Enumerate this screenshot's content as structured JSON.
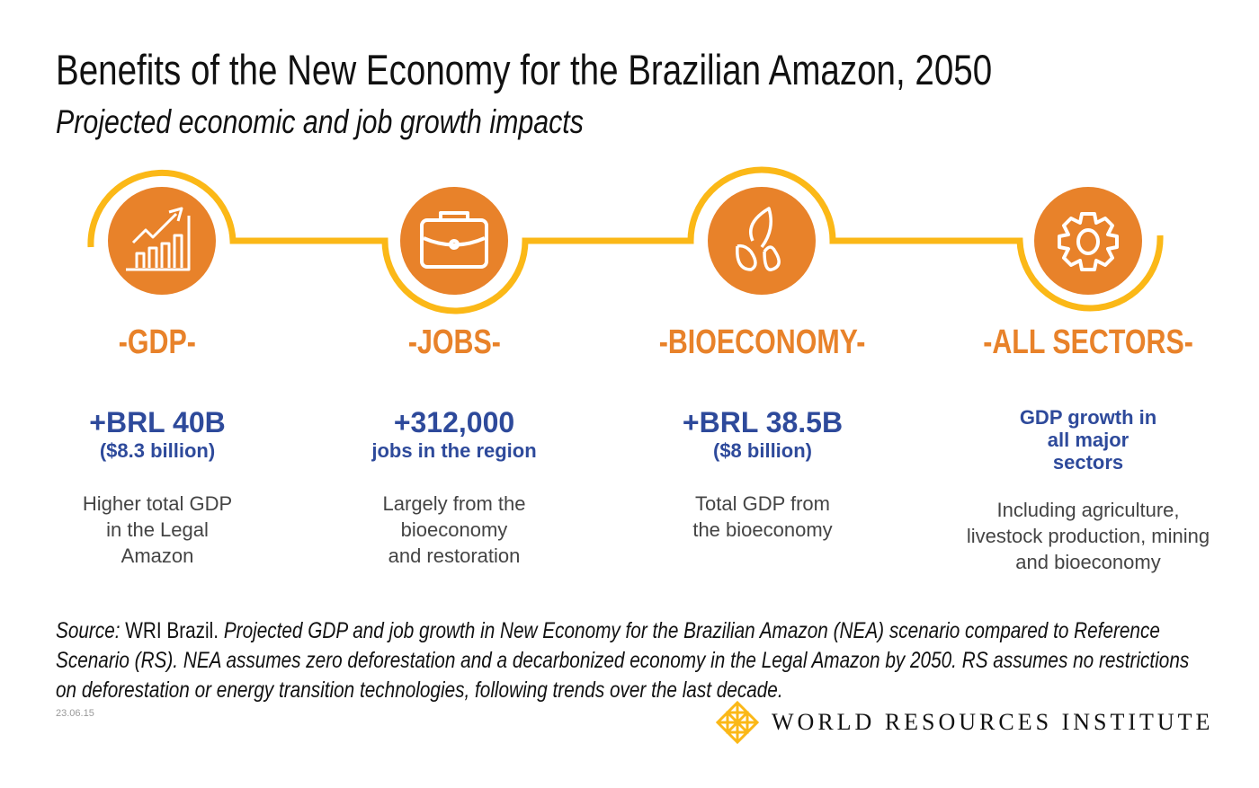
{
  "title": "Benefits of the New Economy for the Brazilian Amazon, 2050",
  "subtitle": "Projected economic and job growth impacts",
  "colors": {
    "accent_orange": "#E8822A",
    "arc_yellow": "#FBB817",
    "value_blue": "#2E4A9B"
  },
  "items": [
    {
      "icon": "growth-chart-icon",
      "category": "-GDP-",
      "value": "+BRL 40B",
      "subvalue": "($8.3 billion)",
      "description": "Higher total GDP in the Legal Amazon"
    },
    {
      "icon": "briefcase-icon",
      "category": "-JOBS-",
      "value": "+312,000",
      "subvalue": "jobs in the region",
      "description": "Largely from the bioeconomy and restoration"
    },
    {
      "icon": "seeds-icon",
      "category": "-BIOECONOMY-",
      "value": "+BRL 38.5B",
      "subvalue": "($8 billion)",
      "description": "Total GDP from the bioeconomy"
    },
    {
      "icon": "gear-icon",
      "category": "-ALL SECTORS-",
      "value": "GDP growth in all major sectors",
      "description": "Including agriculture, livestock production, mining and bioeconomy"
    }
  ],
  "source": {
    "label": "Source:",
    "org": "WRI Brazil.",
    "text": "Projected GDP and job growth in New Economy for the Brazilian Amazon (NEA) scenario compared to Reference Scenario (RS). NEA assumes zero deforestation and a decarbonized economy in the Legal Amazon by 2050. RS assumes no restrictions on deforestation or energy transition technologies, following trends over the last decade."
  },
  "date": "23.06.15",
  "logo": {
    "text": "WORLD RESOURCES INSTITUTE"
  }
}
